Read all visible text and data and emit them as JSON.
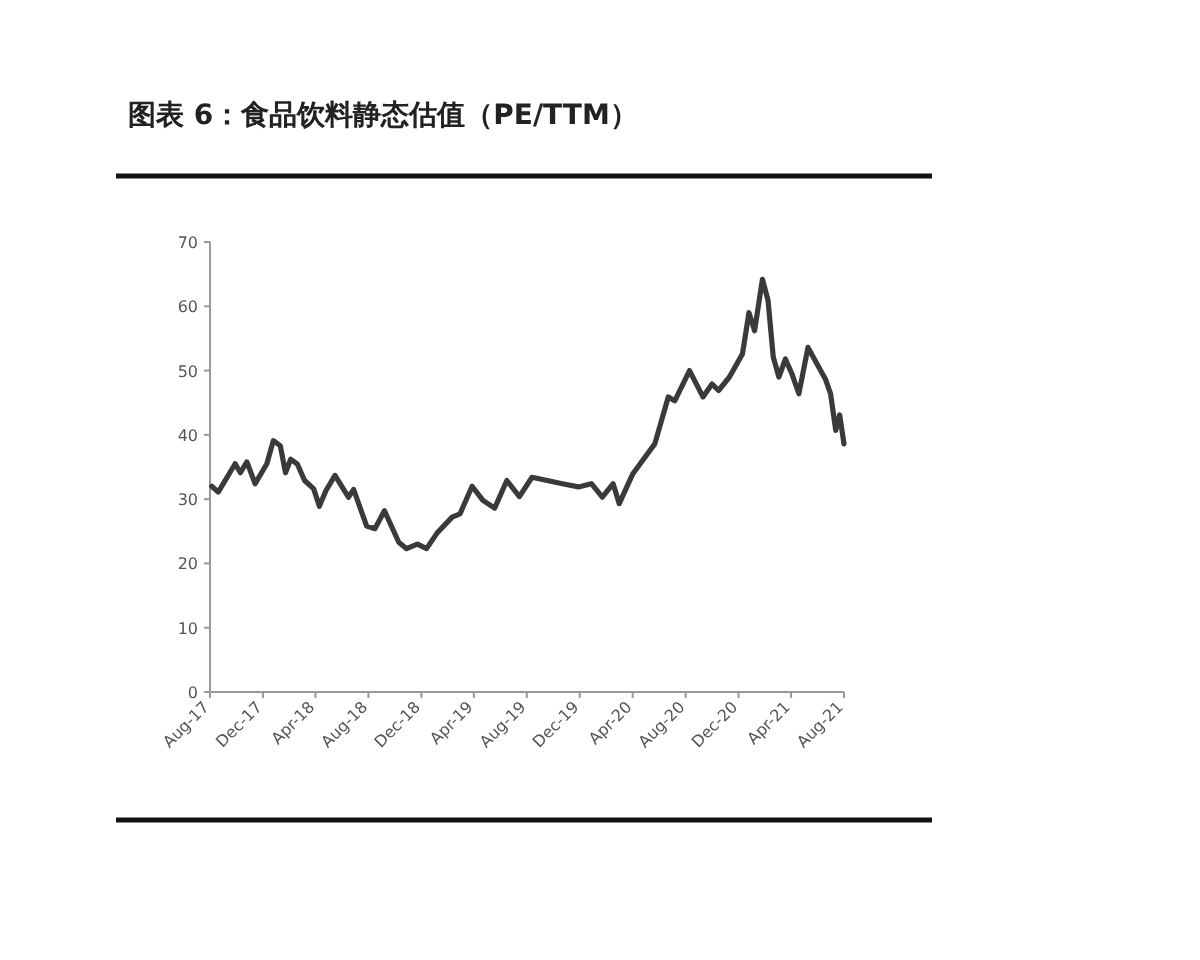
{
  "chart_data": {
    "type": "line",
    "title": "图表 6：食品饮料静态估值（PE/TTM）",
    "xlim": [
      "2017-08",
      "2021-08"
    ],
    "ylim": [
      0,
      70
    ],
    "yticks": [
      0,
      10,
      20,
      30,
      40,
      50,
      60,
      70
    ],
    "xticks": [
      {
        "value": "2017-08",
        "label": "Aug-17"
      },
      {
        "value": "2017-12",
        "label": "Dec-17"
      },
      {
        "value": "2018-04",
        "label": "Apr-18"
      },
      {
        "value": "2018-08",
        "label": "Aug-18"
      },
      {
        "value": "2018-12",
        "label": "Dec-18"
      },
      {
        "value": "2019-04",
        "label": "Apr-19"
      },
      {
        "value": "2019-08",
        "label": "Aug-19"
      },
      {
        "value": "2019-12",
        "label": "Dec-19"
      },
      {
        "value": "2020-04",
        "label": "Apr-20"
      },
      {
        "value": "2020-08",
        "label": "Aug-20"
      },
      {
        "value": "2020-12",
        "label": "Dec-20"
      },
      {
        "value": "2021-04",
        "label": "Apr-21"
      },
      {
        "value": "2021-08",
        "label": "Aug-21"
      }
    ],
    "series": [
      {
        "color": "#3a3a3a",
        "x": [
          "2017-08-05",
          "2017-08-20",
          "2017-09-28",
          "2017-10-10",
          "2017-10-25",
          "2017-11-13",
          "2017-12-10",
          "2017-12-25",
          "2018-01-10",
          "2018-01-22",
          "2018-02-03",
          "2018-02-18",
          "2018-03-07",
          "2018-03-28",
          "2018-04-10",
          "2018-04-25",
          "2018-05-16",
          "2018-06-16",
          "2018-06-28",
          "2018-07-28",
          "2018-08-16",
          "2018-09-07",
          "2018-10-10",
          "2018-10-28",
          "2018-11-22",
          "2018-12-13",
          "2019-01-07",
          "2019-02-10",
          "2019-02-28",
          "2019-03-28",
          "2019-04-22",
          "2019-05-19",
          "2019-06-16",
          "2019-07-15",
          "2019-08-13",
          "2019-10-22",
          "2019-11-28",
          "2019-12-28",
          "2020-01-22",
          "2020-02-16",
          "2020-03-01",
          "2020-04-01",
          "2020-05-22",
          "2020-06-22",
          "2020-07-07",
          "2020-08-10",
          "2020-09-10",
          "2020-10-01",
          "2020-10-16",
          "2020-11-10",
          "2020-12-10",
          "2020-12-25",
          "2021-01-07",
          "2021-01-25",
          "2021-02-07",
          "2021-02-19",
          "2021-03-04",
          "2021-03-19",
          "2021-04-04",
          "2021-04-19",
          "2021-05-10",
          "2021-06-04",
          "2021-06-19",
          "2021-07-01",
          "2021-07-13",
          "2021-07-22",
          "2021-08-01"
        ],
        "values": [
          32.0,
          31.1,
          35.5,
          34.1,
          35.8,
          32.4,
          35.5,
          39.1,
          38.3,
          34.1,
          36.2,
          35.5,
          32.9,
          31.6,
          28.9,
          31.3,
          33.7,
          30.3,
          31.5,
          25.8,
          25.4,
          28.2,
          23.3,
          22.3,
          23.0,
          22.3,
          24.8,
          27.2,
          27.7,
          32.0,
          29.8,
          28.6,
          32.9,
          30.4,
          33.4,
          32.4,
          31.9,
          32.4,
          30.3,
          32.4,
          29.3,
          33.9,
          38.6,
          45.9,
          45.3,
          50.0,
          45.9,
          47.9,
          46.9,
          49.0,
          52.6,
          59.0,
          56.2,
          64.2,
          60.9,
          52.1,
          49.0,
          51.8,
          49.3,
          46.4,
          53.6,
          50.5,
          48.7,
          46.4,
          40.7,
          43.1,
          38.6
        ]
      }
    ]
  }
}
